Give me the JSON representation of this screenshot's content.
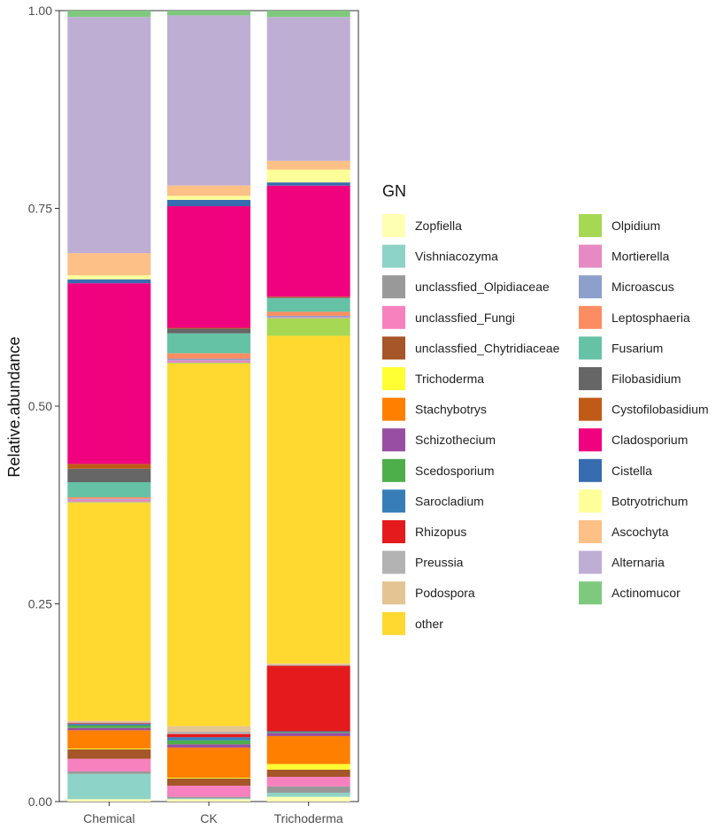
{
  "chart_data": {
    "type": "bar",
    "stacked": true,
    "orientation": "vertical",
    "ylabel": "Relative.abundance",
    "xlabel": "",
    "ylim": [
      0,
      1
    ],
    "yticks": [
      "0.00",
      "0.25",
      "0.50",
      "0.75",
      "1.00"
    ],
    "categories": [
      "Chemical",
      "CK",
      "Trichoderma"
    ],
    "legend_title": "GN",
    "legend_position": "right",
    "grid": false,
    "series": [
      {
        "name": "Zopfiella",
        "color": "#FFFFB3",
        "values": [
          0.003,
          0.003,
          0.006
        ]
      },
      {
        "name": "Vishniacozyma",
        "color": "#8DD3C7",
        "values": [
          0.032,
          0.001,
          0.005
        ]
      },
      {
        "name": "unclassfied_Olpidiaceae",
        "color": "#999999",
        "values": [
          0.003,
          0.002,
          0.008
        ]
      },
      {
        "name": "unclassfied_Fungi",
        "color": "#F781BF",
        "values": [
          0.016,
          0.014,
          0.012
        ]
      },
      {
        "name": "unclassfied_Chytridiaceae",
        "color": "#A65628",
        "values": [
          0.012,
          0.009,
          0.009
        ]
      },
      {
        "name": "Trichoderma",
        "color": "#FFFF33",
        "values": [
          0.001,
          0.001,
          0.007
        ]
      },
      {
        "name": "Stachybotrys",
        "color": "#FF7F00",
        "values": [
          0.023,
          0.038,
          0.035
        ]
      },
      {
        "name": "Schizothecium",
        "color": "#984EA3",
        "values": [
          0.003,
          0.004,
          0.004
        ]
      },
      {
        "name": "Scedosporium",
        "color": "#4DAF4A",
        "values": [
          0.003,
          0.005,
          0.001
        ]
      },
      {
        "name": "Sarocladium",
        "color": "#377EB8",
        "values": [
          0.002,
          0.004,
          0.001
        ]
      },
      {
        "name": "Rhizopus",
        "color": "#E41A1C",
        "values": [
          0.001,
          0.004,
          0.082
        ]
      },
      {
        "name": "Preussia",
        "color": "#B3B3B3",
        "values": [
          0.001,
          0.003,
          0.001
        ]
      },
      {
        "name": "Podospora",
        "color": "#E5C494",
        "values": [
          0.002,
          0.007,
          0.002
        ]
      },
      {
        "name": "other",
        "color": "#FFD92F",
        "values": [
          0.275,
          0.456,
          0.41
        ]
      },
      {
        "name": "Olpidium",
        "color": "#A6D854",
        "values": [
          0.001,
          0.001,
          0.022
        ]
      },
      {
        "name": "Mortierella",
        "color": "#E78AC3",
        "values": [
          0.003,
          0.003,
          0.001
        ]
      },
      {
        "name": "Microascus",
        "color": "#8DA0CB",
        "values": [
          0.001,
          0.002,
          0.002
        ]
      },
      {
        "name": "Leptosphaeria",
        "color": "#FC8D62",
        "values": [
          0.002,
          0.007,
          0.005
        ]
      },
      {
        "name": "Fusarium",
        "color": "#66C2A5",
        "values": [
          0.019,
          0.025,
          0.017
        ]
      },
      {
        "name": "Filobasidium",
        "color": "#666666",
        "values": [
          0.017,
          0.006,
          0.001
        ]
      },
      {
        "name": "Cystofilobasidium",
        "color": "#BF5B17",
        "values": [
          0.006,
          0.001,
          0.001
        ]
      },
      {
        "name": "Cladosporium",
        "color": "#F0027F",
        "values": [
          0.228,
          0.153,
          0.139
        ]
      },
      {
        "name": "Cistella",
        "color": "#386CB0",
        "values": [
          0.005,
          0.008,
          0.004
        ]
      },
      {
        "name": "Botryotrichum",
        "color": "#FFFF99",
        "values": [
          0.005,
          0.005,
          0.016
        ]
      },
      {
        "name": "Ascochyta",
        "color": "#FDC086",
        "values": [
          0.028,
          0.013,
          0.011
        ]
      },
      {
        "name": "Alternaria",
        "color": "#BEAED4",
        "values": [
          0.298,
          0.214,
          0.18
        ]
      },
      {
        "name": "Actinomucor",
        "color": "#7FC97F",
        "values": [
          0.008,
          0.006,
          0.008
        ]
      }
    ]
  }
}
